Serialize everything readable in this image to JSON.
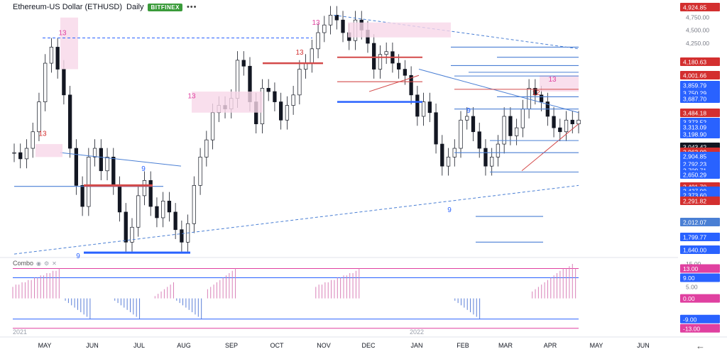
{
  "header": {
    "title": "Ethereum-US Dollar (ETHUSD)",
    "interval": "Daily",
    "exchange": "BITFINEX",
    "menu_icon": "more-dots-icon"
  },
  "combo": {
    "label": "Combo",
    "icons": [
      "eye-icon",
      "gear-icon",
      "close-icon"
    ]
  },
  "years": [
    "2021",
    "2022"
  ],
  "nav": {
    "back_icon": "arrow-left-icon"
  },
  "chart_data": [
    {
      "type": "candlestick",
      "title": "Ethereum-US Dollar (ETHUSD)",
      "x_ticks": [
        "MAY",
        "JUN",
        "JUL",
        "AUG",
        "SEP",
        "OCT",
        "NOV",
        "DEC",
        "JAN",
        "FEB",
        "MAR",
        "APR",
        "MAY",
        "JUN"
      ],
      "y_ticks": [
        4750.0,
        4500.0,
        4250.0
      ],
      "y_tick_labels": [
        "4,750.00",
        "4,500.00",
        "4,250.00"
      ],
      "ylim": [
        1700,
        5000
      ],
      "scale": "log",
      "price_tags": [
        {
          "value": "4,924.85",
          "color": "#d32f2f"
        },
        {
          "value": "4,180.63",
          "color": "#d32f2f"
        },
        {
          "value": "4,001.66",
          "color": "#d32f2f"
        },
        {
          "value": "3,859.79",
          "color": "#2962ff"
        },
        {
          "value": "3,750.29",
          "color": "#2962ff"
        },
        {
          "value": "3,687.70",
          "color": "#2962ff"
        },
        {
          "value": "3,484.18",
          "color": "#d32f2f"
        },
        {
          "value": "3,373.52",
          "color": "#2962ff"
        },
        {
          "value": "3,313.09",
          "color": "#2962ff"
        },
        {
          "value": "3,198.90",
          "color": "#2962ff"
        },
        {
          "value": "3,043.42",
          "color": "#131722"
        },
        {
          "value": "2,963.09",
          "color": "#d32f2f"
        },
        {
          "value": "2,904.85",
          "color": "#2962ff"
        },
        {
          "value": "2,792.23",
          "color": "#2962ff"
        },
        {
          "value": "2,709.71",
          "color": "#2962ff"
        },
        {
          "value": "2,650.29",
          "color": "#2962ff"
        },
        {
          "value": "2,491.70",
          "color": "#d32f2f"
        },
        {
          "value": "2,437.99",
          "color": "#2962ff"
        },
        {
          "value": "2,373.60",
          "color": "#2962ff"
        },
        {
          "value": "2,291.82",
          "color": "#d32f2f"
        },
        {
          "value": "2,012.07",
          "color": "#4a7fd4"
        },
        {
          "value": "1,799.77",
          "color": "#2962ff"
        },
        {
          "value": "1,640.00",
          "color": "#2962ff"
        }
      ],
      "last_price": 3043.42,
      "close_series": [
        2650,
        2580,
        2700,
        2900,
        3300,
        3900,
        4180,
        3800,
        3400,
        2700,
        2300,
        2100,
        2600,
        2700,
        2450,
        2600,
        2300,
        2050,
        1800,
        1920,
        2200,
        2350,
        2100,
        2000,
        2150,
        2050,
        1900,
        1800,
        1950,
        2300,
        2600,
        2800,
        3150,
        3250,
        3200,
        3350,
        3950,
        3850,
        3300,
        3000,
        3500,
        3450,
        3300,
        3050,
        3250,
        3400,
        3800,
        3900,
        4150,
        4450,
        4600,
        4800,
        4700,
        4450,
        4300,
        4700,
        4500,
        4250,
        3800,
        4050,
        4100,
        3900,
        3800,
        3700,
        3400,
        3100,
        3300,
        3150,
        2750,
        2500,
        2600,
        2700,
        3050,
        3100,
        2900,
        2700,
        2500,
        2600,
        2750,
        3100,
        2850,
        2950,
        3200,
        3500,
        3400,
        3300,
        3100,
        2950,
        2900,
        3050,
        3000,
        3050
      ],
      "td_labels": [
        {
          "text": "13",
          "color": "#e040a0"
        },
        {
          "text": "9",
          "color": "#2962ff"
        },
        {
          "text": "13",
          "color": "#d32f2f"
        },
        {
          "text": "9",
          "color": "#2962ff"
        },
        {
          "text": "13",
          "color": "#e040a0"
        },
        {
          "text": "9",
          "color": "#2962ff"
        },
        {
          "text": "13",
          "color": "#d32f2f"
        },
        {
          "text": "13",
          "color": "#e040a0"
        },
        {
          "text": "9",
          "color": "#2962ff"
        },
        {
          "text": "12",
          "color": "#d32f2f"
        },
        {
          "text": "13",
          "color": "#e040a0"
        }
      ]
    },
    {
      "type": "bar",
      "title": "Combo",
      "y_tick_labels": [
        "15.00",
        "13.00",
        "9.00",
        "5.00",
        "0.00",
        "-9.00",
        "-13.00"
      ],
      "y_ticks": [
        15,
        13,
        9,
        5,
        0,
        -9,
        -13
      ],
      "ylim": [
        -14,
        15
      ],
      "tags": [
        {
          "value": "13.00",
          "color": "#e040a0"
        },
        {
          "value": "9.00",
          "color": "#2962ff"
        },
        {
          "value": "0.00",
          "color": "#e040a0"
        },
        {
          "value": "-9.00",
          "color": "#2962ff"
        },
        {
          "value": "-13.00",
          "color": "#e040a0"
        }
      ],
      "values": [
        5,
        6,
        6,
        7,
        7,
        8,
        8,
        9,
        9,
        10,
        10,
        11,
        11,
        12,
        12,
        13,
        0,
        -1,
        -2,
        -3,
        -4,
        -5,
        -6,
        -7,
        -8,
        -9,
        0,
        0,
        0,
        0,
        0,
        0,
        0,
        -1,
        -2,
        -3,
        -4,
        -5,
        -6,
        -7,
        -8,
        -9,
        0,
        0,
        0,
        0,
        1,
        2,
        3,
        4,
        5,
        6,
        7,
        -1,
        -2,
        -3,
        -4,
        -5,
        -6,
        -7,
        -8,
        -9,
        0,
        4,
        5,
        6,
        7,
        8,
        9,
        10,
        11,
        12,
        13,
        0,
        0,
        0,
        0,
        0,
        0,
        0,
        0,
        0,
        0,
        0,
        0,
        0,
        0,
        0,
        0,
        0,
        0,
        0,
        0,
        0,
        0,
        0,
        0,
        0,
        5,
        6,
        6,
        7,
        7,
        8,
        8,
        9,
        9,
        10,
        10,
        11,
        11,
        12,
        13,
        0,
        0,
        0,
        0,
        0,
        0,
        0,
        0,
        0,
        0,
        0,
        0,
        0,
        0,
        0,
        0,
        0,
        0,
        0,
        0,
        0,
        0,
        0,
        0,
        0,
        0,
        0,
        0,
        0,
        0,
        -1,
        -2,
        -3,
        -4,
        -5,
        -6,
        -7,
        -8,
        -9,
        0,
        0,
        0,
        0,
        0,
        0,
        0,
        0,
        0,
        0,
        0,
        0,
        0,
        0,
        0,
        0,
        3,
        4,
        5,
        6,
        7,
        8,
        9,
        10,
        11,
        12,
        13,
        13,
        14,
        15,
        13
      ]
    }
  ]
}
